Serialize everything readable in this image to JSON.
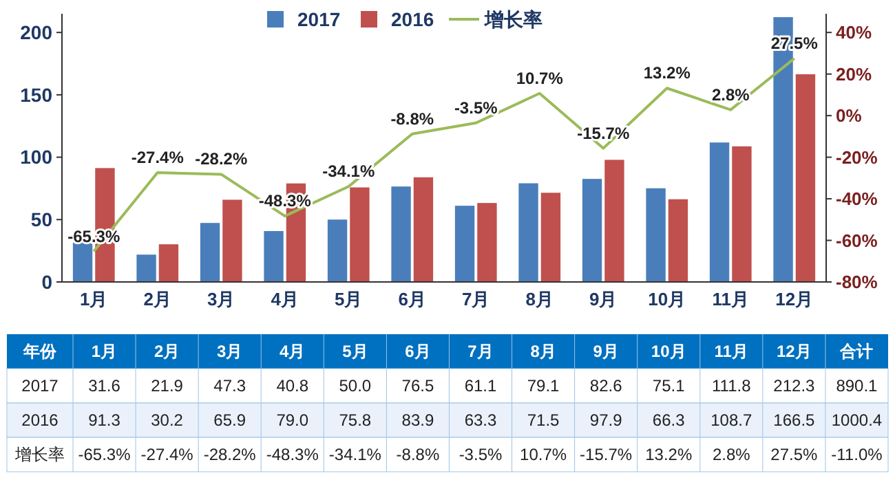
{
  "chart_data": {
    "type": "bar",
    "categories": [
      "1月",
      "2月",
      "3月",
      "4月",
      "5月",
      "6月",
      "7月",
      "8月",
      "9月",
      "10月",
      "11月",
      "12月"
    ],
    "series": [
      {
        "name": "2017",
        "color": "#4a7ebb",
        "values": [
          31.6,
          21.9,
          47.3,
          40.8,
          50.0,
          76.5,
          61.1,
          79.1,
          82.6,
          75.1,
          111.8,
          212.3
        ],
        "value_labels": [
          "31.6",
          "21.9",
          "47.3",
          "40.8",
          "50.0",
          "76.5",
          "61.1",
          "79.1",
          "82.6",
          "75.1",
          "111.8",
          "212.3"
        ]
      },
      {
        "name": "2016",
        "color": "#c0504d",
        "values": [
          91.3,
          30.2,
          65.9,
          79.0,
          75.8,
          83.9,
          63.3,
          71.5,
          97.9,
          66.3,
          108.7,
          166.5
        ],
        "value_labels": [
          "91.3",
          "30.2",
          "65.9",
          "79.0",
          "75.8",
          "83.9",
          "63.3",
          "71.5",
          "97.9",
          "66.3",
          "108.7",
          "166.5"
        ]
      },
      {
        "name": "增长率",
        "type": "line",
        "axis": "y2",
        "color": "#9bbb59",
        "values": [
          -65.3,
          -27.4,
          -28.2,
          -48.3,
          -34.1,
          -8.8,
          -3.5,
          10.7,
          -15.7,
          13.2,
          2.8,
          27.5
        ],
        "value_labels": [
          "-65.3%",
          "-27.4%",
          "-28.2%",
          "-48.3%",
          "-34.1%",
          "-8.8%",
          "-3.5%",
          "10.7%",
          "-15.7%",
          "13.2%",
          "2.8%",
          "27.5%"
        ]
      }
    ],
    "ylim": [
      0,
      215
    ],
    "yticks": [
      0,
      50,
      100,
      150,
      200
    ],
    "y2lim": [
      -80,
      49
    ],
    "y2ticks": [
      {
        "value": -80,
        "label": "-80%"
      },
      {
        "value": -60,
        "label": "-60%"
      },
      {
        "value": -40,
        "label": "-40%"
      },
      {
        "value": -20,
        "label": "-20%"
      },
      {
        "value": 0,
        "label": "0%"
      },
      {
        "value": 20,
        "label": "20%"
      },
      {
        "value": 40,
        "label": "40%"
      }
    ],
    "legend": "top",
    "grid": false,
    "marker": "none",
    "annotations": [
      "年份",
      "合计",
      "890.1",
      "1000.4",
      "-11.0%"
    ]
  }
}
